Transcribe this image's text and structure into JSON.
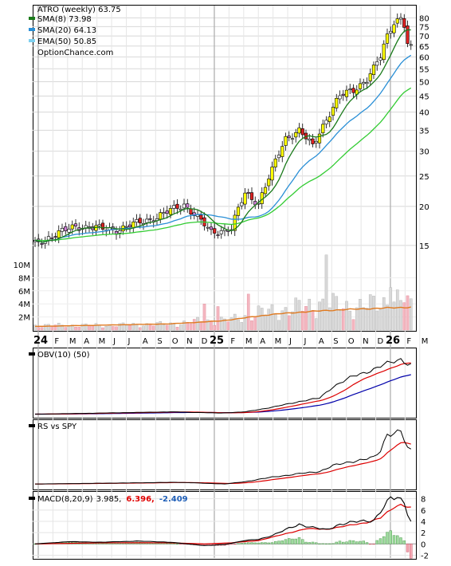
{
  "chart_data": [
    {
      "type": "candlestick",
      "symbol_label": "ATRO (weekly) 63.75",
      "legend": [
        {
          "label": "SMA(8) 73.98",
          "color": "#1a7a1a"
        },
        {
          "label": "SMA(20) 64.13",
          "color": "#2a8fd6"
        },
        {
          "label": "EMA(50) 50.85",
          "color": "#33cc33"
        }
      ],
      "watermark": "OptionChance.com",
      "y_ticks": [
        15,
        20,
        25,
        30,
        35,
        40,
        45,
        50,
        55,
        60,
        65,
        70,
        75,
        80
      ],
      "ylim": [
        12,
        86
      ],
      "volume_ticks": [
        "2M",
        "4M",
        "6M",
        "8M",
        "10M"
      ],
      "volume_tick_values": [
        2,
        4,
        6,
        8,
        10
      ],
      "x_month_labels": [
        "24",
        "F",
        "M",
        "A",
        "M",
        "J",
        "J",
        "A",
        "S",
        "O",
        "N",
        "D",
        "25",
        "F",
        "M",
        "A",
        "M",
        "J",
        "J",
        "A",
        "S",
        "O",
        "N",
        "D",
        "26",
        "F",
        "M"
      ],
      "year_labels": [
        "24",
        "25",
        "26"
      ],
      "close_key_points": [
        [
          0,
          15.2
        ],
        [
          12,
          17.3
        ],
        [
          24,
          16.8
        ],
        [
          36,
          18.5
        ],
        [
          44,
          20.3
        ],
        [
          52,
          16.5
        ],
        [
          58,
          17
        ],
        [
          62,
          22
        ],
        [
          66,
          20.5
        ],
        [
          70,
          26
        ],
        [
          74,
          33
        ],
        [
          78,
          35
        ],
        [
          82,
          31
        ],
        [
          86,
          38
        ],
        [
          90,
          45
        ],
        [
          94,
          47
        ],
        [
          98,
          51
        ],
        [
          100,
          55
        ],
        [
          102,
          60
        ],
        [
          104,
          70
        ],
        [
          106,
          78
        ],
        [
          108,
          80
        ],
        [
          109,
          76
        ],
        [
          110,
          66
        ],
        [
          111,
          63.75
        ]
      ],
      "volume_key_points": [
        [
          0,
          0.7
        ],
        [
          20,
          0.7
        ],
        [
          40,
          0.9
        ],
        [
          50,
          1.4
        ],
        [
          58,
          1.5
        ],
        [
          64,
          2.5
        ],
        [
          70,
          2.8
        ],
        [
          76,
          3.3
        ],
        [
          80,
          3.5
        ],
        [
          84,
          4
        ],
        [
          88,
          3.8
        ],
        [
          92,
          3.6
        ],
        [
          96,
          3.6
        ],
        [
          100,
          3.8
        ],
        [
          104,
          4.5
        ],
        [
          108,
          4.3
        ],
        [
          111,
          3.6
        ]
      ],
      "volume_spikes": [
        [
          50,
          4.0
        ],
        [
          54,
          3.6
        ],
        [
          63,
          5.5
        ],
        [
          84,
          4.3
        ],
        [
          86,
          16.0
        ],
        [
          105,
          6.5
        ],
        [
          109,
          4.2
        ]
      ],
      "volume_avg_key_points": [
        [
          0,
          0.55
        ],
        [
          40,
          0.95
        ],
        [
          55,
          1.4
        ],
        [
          70,
          2.4
        ],
        [
          80,
          2.8
        ],
        [
          90,
          3.1
        ],
        [
          100,
          3.3
        ],
        [
          111,
          3.5
        ]
      ]
    },
    {
      "type": "line",
      "title": "OBV(10) (50)",
      "obv_key_points": [
        [
          0,
          1
        ],
        [
          20,
          2
        ],
        [
          40,
          3
        ],
        [
          55,
          2
        ],
        [
          62,
          3
        ],
        [
          70,
          7
        ],
        [
          78,
          12
        ],
        [
          84,
          15
        ],
        [
          88,
          25
        ],
        [
          94,
          34
        ],
        [
          100,
          40
        ],
        [
          104,
          45
        ],
        [
          108,
          49
        ],
        [
          110,
          45
        ],
        [
          111,
          44
        ]
      ],
      "ylim": [
        0,
        52
      ]
    },
    {
      "type": "line",
      "title": "RS vs SPY",
      "rs_key_points": [
        [
          0,
          1
        ],
        [
          15,
          1.5
        ],
        [
          30,
          2
        ],
        [
          42,
          2.5
        ],
        [
          56,
          1
        ],
        [
          62,
          3
        ],
        [
          70,
          7
        ],
        [
          78,
          10
        ],
        [
          84,
          12
        ],
        [
          88,
          17
        ],
        [
          94,
          21
        ],
        [
          100,
          24
        ],
        [
          102,
          30
        ],
        [
          104,
          45
        ],
        [
          106,
          46
        ],
        [
          108,
          47
        ],
        [
          110,
          32
        ],
        [
          111,
          30
        ]
      ],
      "ylim": [
        -1,
        52
      ]
    },
    {
      "type": "line",
      "title": "MACD(8,20,9)",
      "value_main": "3.985,",
      "value_signal": "6.396,",
      "value_hist": "-2.409",
      "y_ticks": [
        -2,
        0,
        2,
        4,
        6,
        8
      ],
      "ylim": [
        -2.5,
        8.8
      ],
      "macd_key_points": [
        [
          0,
          0
        ],
        [
          10,
          0.4
        ],
        [
          20,
          0.3
        ],
        [
          30,
          0.5
        ],
        [
          40,
          0.3
        ],
        [
          50,
          -0.3
        ],
        [
          56,
          -0.1
        ],
        [
          62,
          0.6
        ],
        [
          66,
          0.8
        ],
        [
          70,
          1.5
        ],
        [
          74,
          2.5
        ],
        [
          78,
          3.5
        ],
        [
          82,
          2.9
        ],
        [
          86,
          2.5
        ],
        [
          90,
          3.5
        ],
        [
          96,
          4
        ],
        [
          100,
          4.2
        ],
        [
          103,
          6.5
        ],
        [
          105,
          8
        ],
        [
          107,
          8.2
        ],
        [
          109,
          7.5
        ],
        [
          110,
          5.5
        ],
        [
          111,
          3.985
        ]
      ],
      "signal_key_points": [
        [
          0,
          0
        ],
        [
          20,
          0.2
        ],
        [
          40,
          0.2
        ],
        [
          50,
          0
        ],
        [
          58,
          0.2
        ],
        [
          66,
          0.6
        ],
        [
          74,
          1.8
        ],
        [
          80,
          2.7
        ],
        [
          86,
          2.6
        ],
        [
          92,
          3.2
        ],
        [
          98,
          3.8
        ],
        [
          102,
          4.6
        ],
        [
          106,
          6.5
        ],
        [
          108,
          7
        ],
        [
          111,
          6.396
        ]
      ]
    }
  ]
}
